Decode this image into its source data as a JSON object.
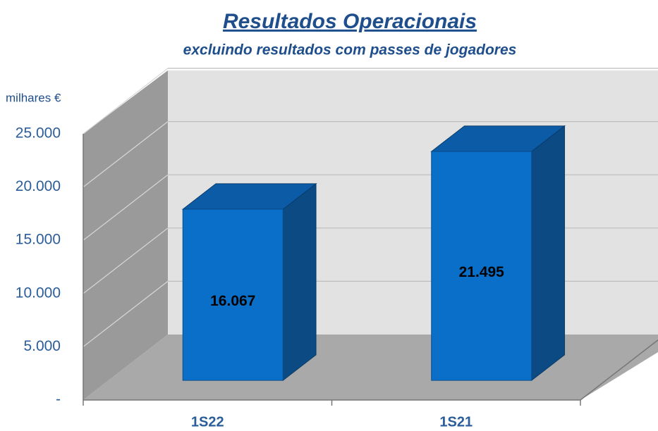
{
  "chart_data": {
    "type": "bar3d",
    "title": "Resultados Operacionais",
    "subtitle": "excluindo resultados com passes de jogadores",
    "y_label": "milhares €",
    "categories": [
      "1S22",
      "1S21"
    ],
    "values": [
      16067,
      21495
    ],
    "value_labels": [
      "16.067",
      "21.495"
    ],
    "color": "#0a6fc9",
    "ylim": [
      0,
      25000
    ],
    "yticks": [
      {
        "value": 0,
        "label": "-"
      },
      {
        "value": 5000,
        "label": "5.000"
      },
      {
        "value": 10000,
        "label": "10.000"
      },
      {
        "value": 15000,
        "label": "15.000"
      },
      {
        "value": 20000,
        "label": "20.000"
      },
      {
        "value": 25000,
        "label": "25.000"
      }
    ],
    "grid": true
  }
}
